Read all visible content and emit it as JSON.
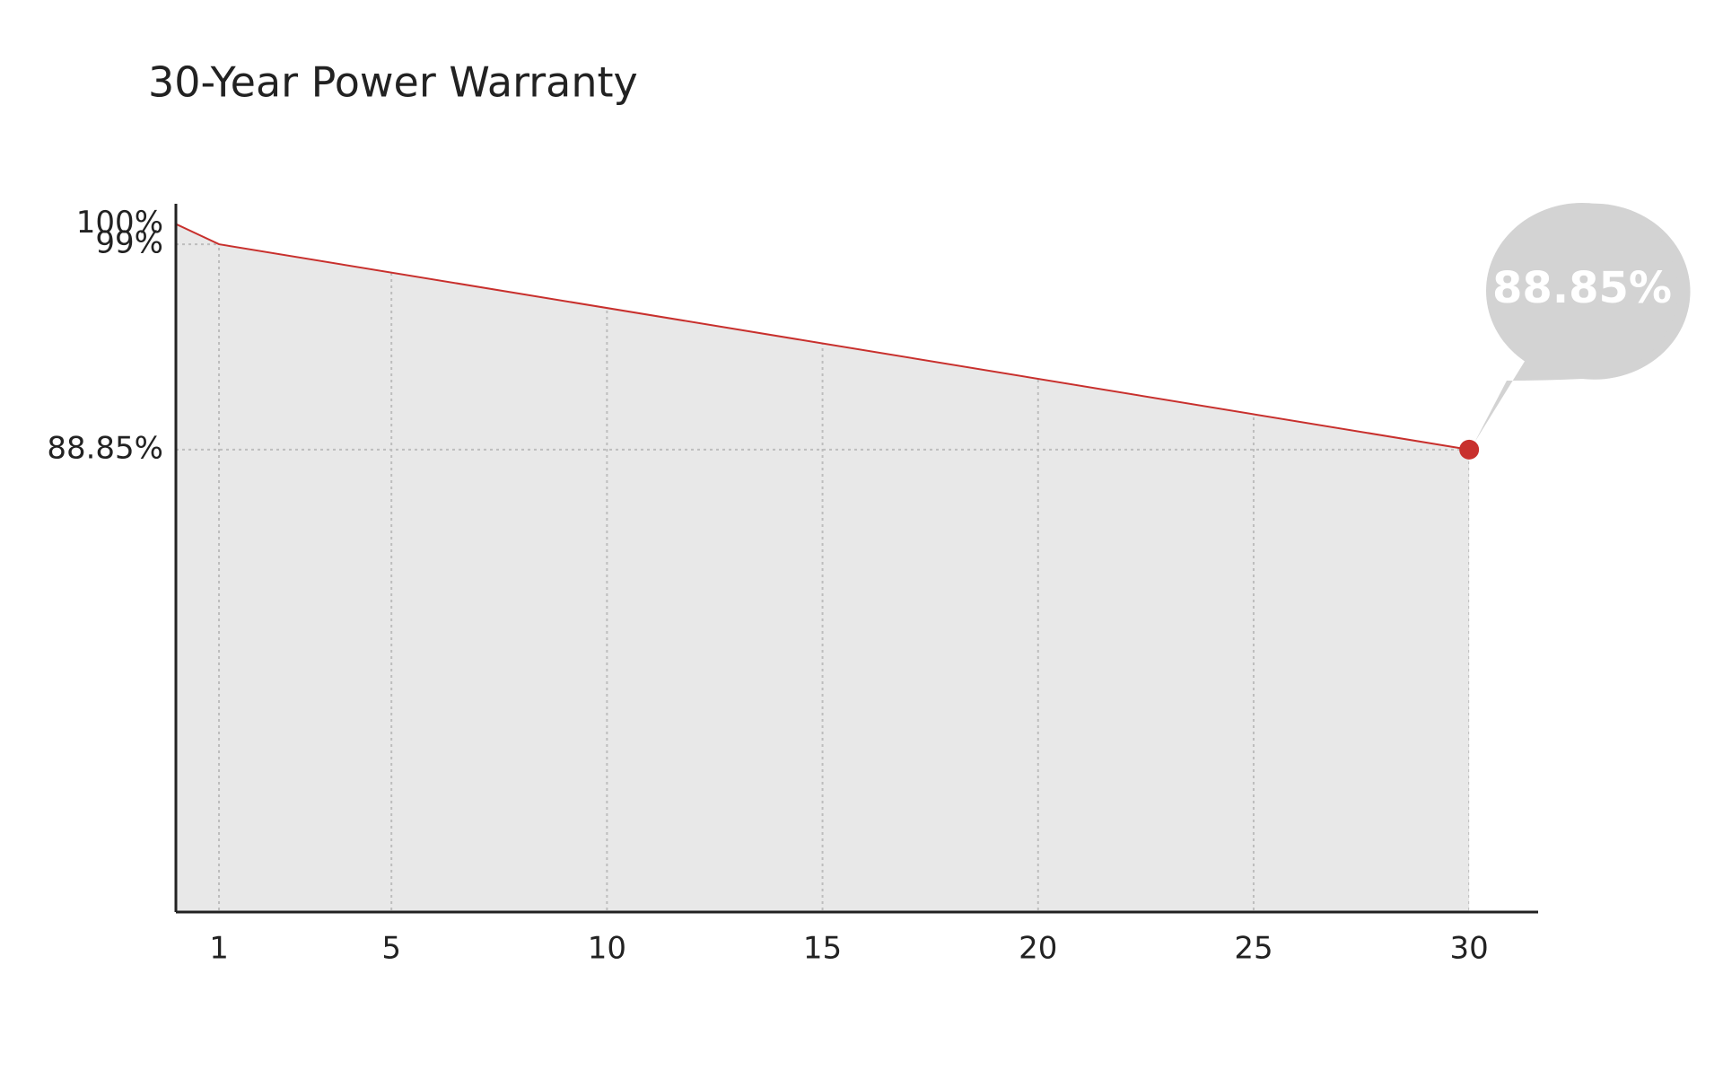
{
  "chart_data": {
    "type": "area",
    "title": "30-Year Power Warranty",
    "x": [
      0,
      1,
      30
    ],
    "series": [
      {
        "values": [
          100,
          99,
          88.85
        ],
        "color": "#c8302d"
      }
    ],
    "area_color": "#e8e8e8",
    "annotation": "88.85%",
    "xlim": [
      0,
      31.6
    ],
    "xticks": [
      1,
      5,
      10,
      15,
      20,
      25,
      30
    ],
    "ylim": [
      66,
      101
    ],
    "yticks": [
      {
        "value": 100,
        "label": "100%"
      },
      {
        "value": 99,
        "label": "99%"
      },
      {
        "value": 88.85,
        "label": "88.85%"
      }
    ],
    "grid": true
  }
}
